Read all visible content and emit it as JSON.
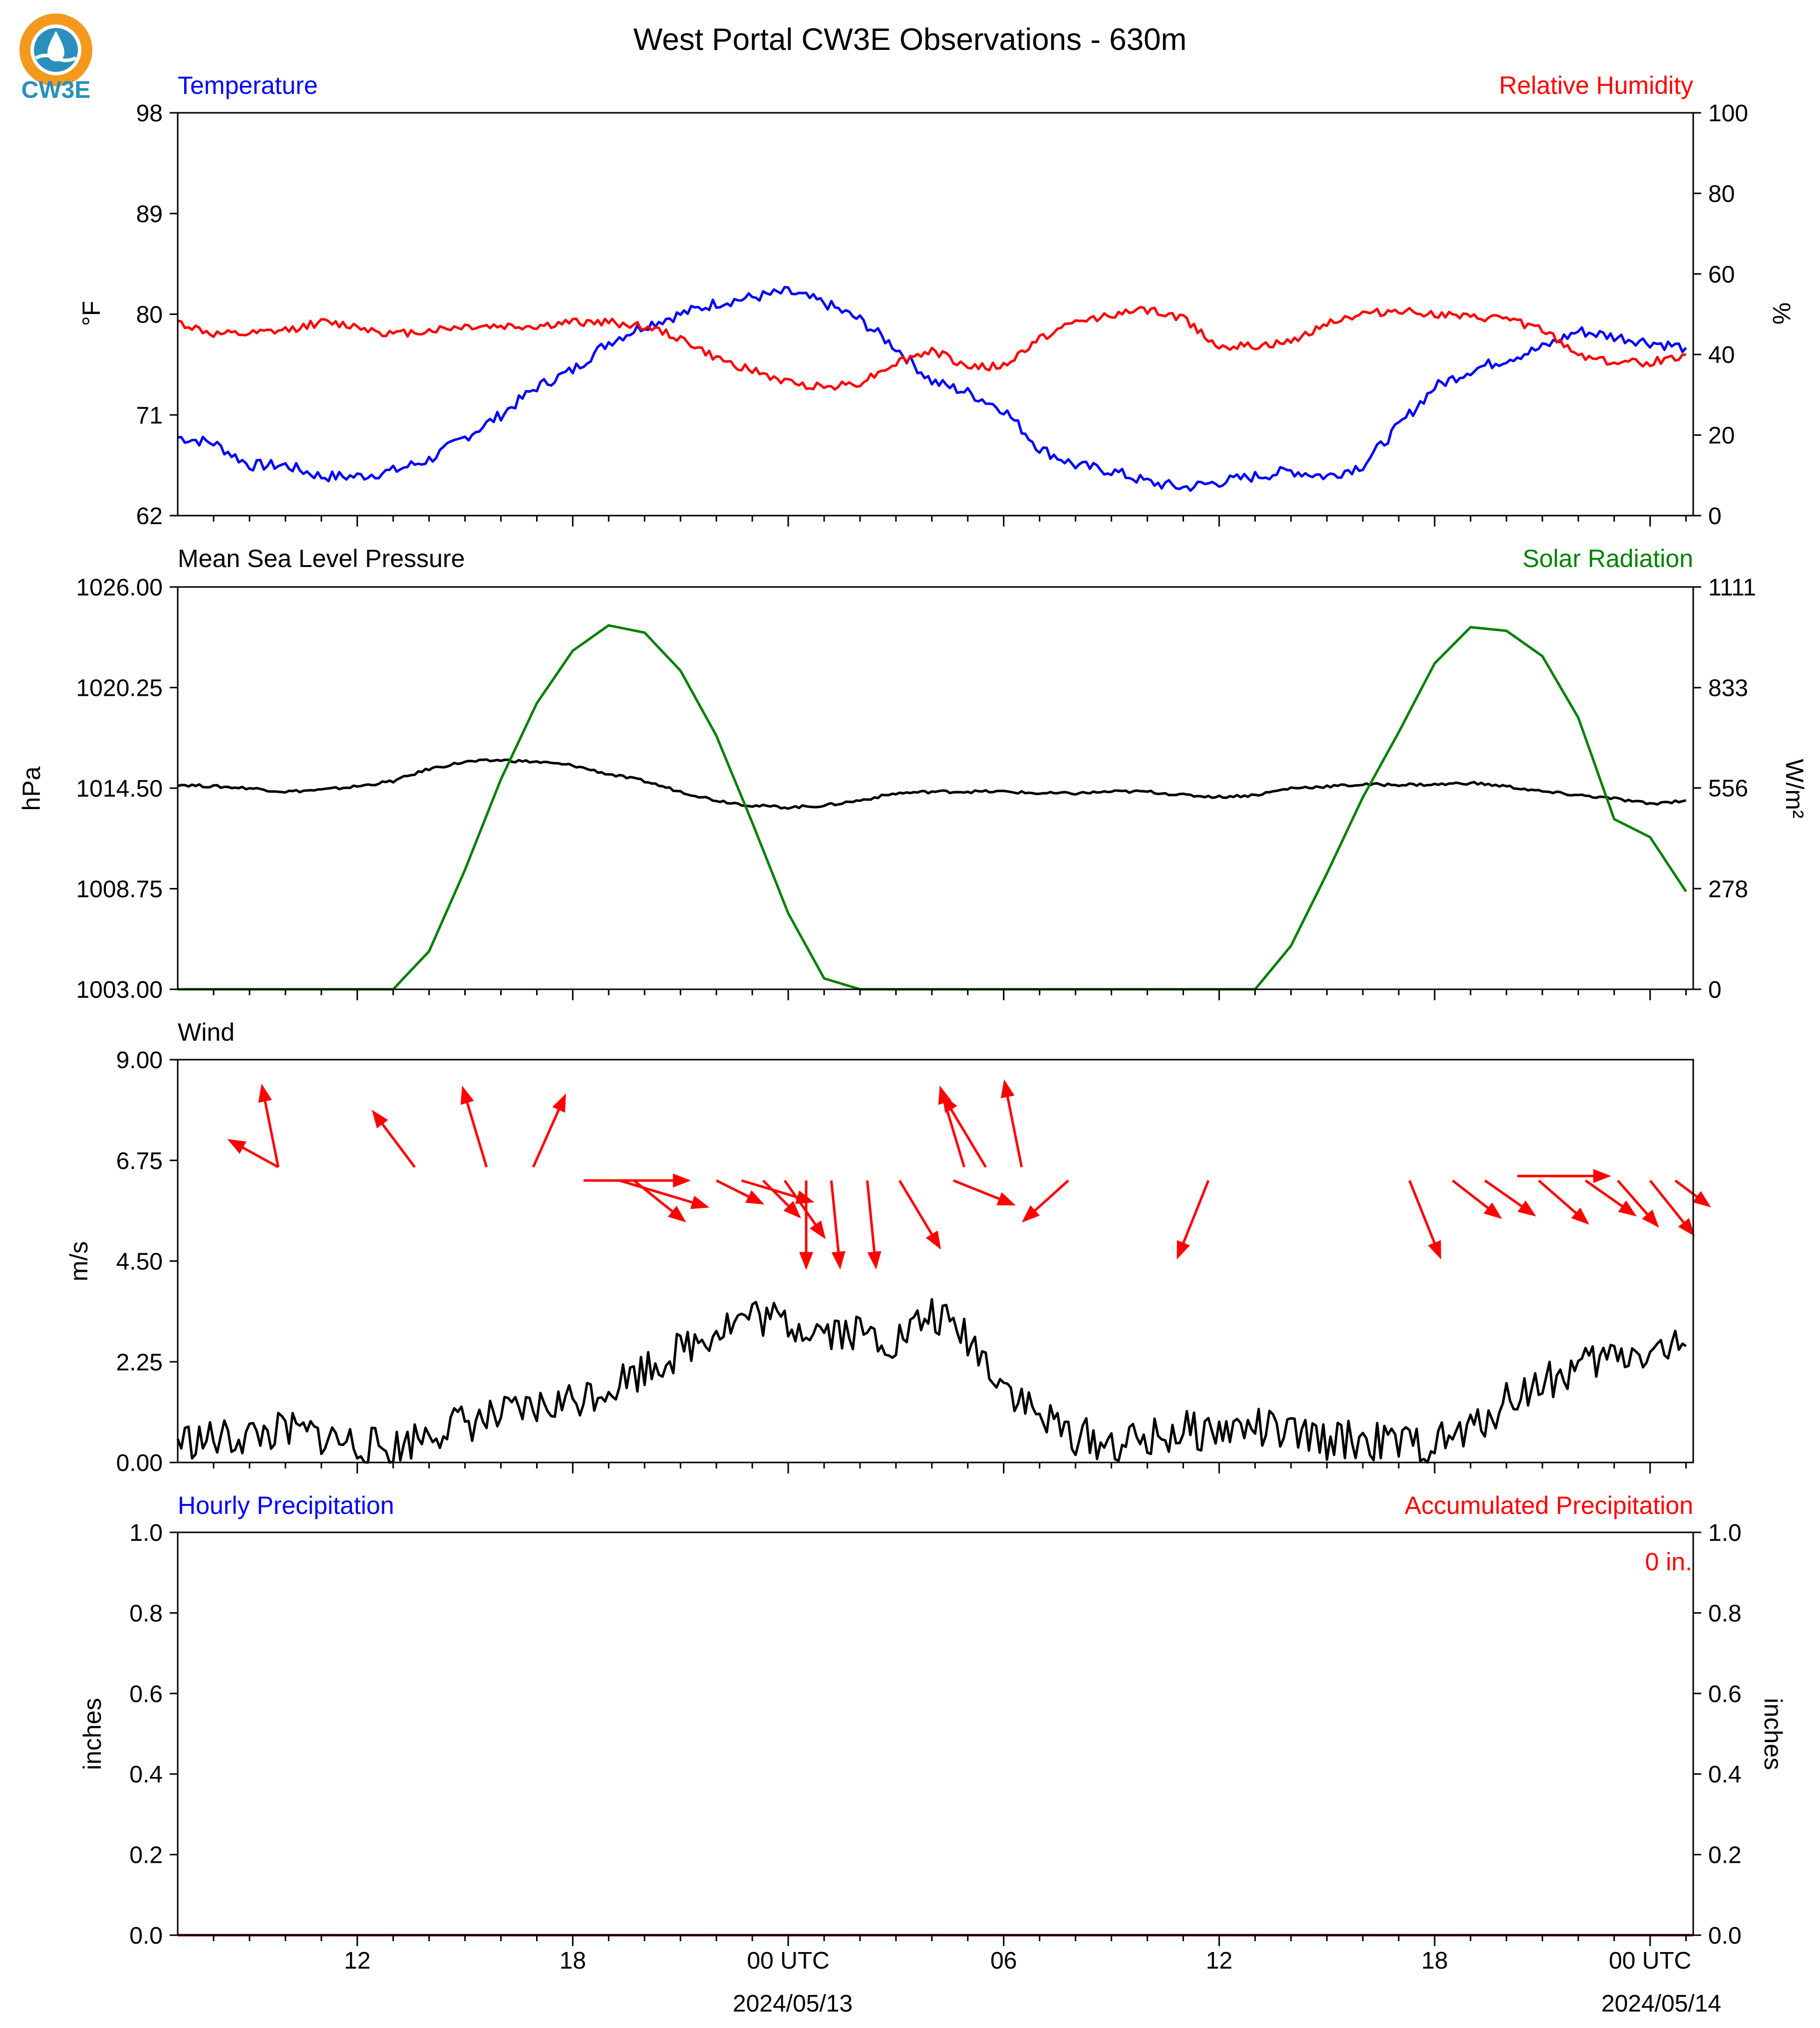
{
  "title": "West Portal CW3E Observations - 630m",
  "logo": {
    "text": "CW3E",
    "colors": [
      "#f39a1e",
      "#2a8fbd"
    ]
  },
  "colors": {
    "blue": "#0000ff",
    "red": "#ff0000",
    "green": "#008000",
    "black": "#000000",
    "accum": "#8b0000"
  },
  "time_axis": {
    "start": "2024-05-12T07:00Z",
    "end": "2024-05-14T01:00Z",
    "tick_hours": [
      "12",
      "18",
      "00 UTC",
      "06",
      "12",
      "18",
      "00 UTC"
    ],
    "date_labels": [
      "2024/05/13",
      "2024/05/14"
    ]
  },
  "chart_data": [
    {
      "type": "line",
      "panel": "temperature-humidity",
      "left_label": "Temperature",
      "right_label": "Relative Humidity",
      "ylabel": "°F",
      "y2label": "%",
      "ylim": [
        62,
        98
      ],
      "y2lim": [
        0,
        100
      ],
      "yticks": [
        "62",
        "71",
        "80",
        "89",
        "98"
      ],
      "y2ticks": [
        "0",
        "20",
        "40",
        "60",
        "80",
        "100"
      ],
      "x_hours": [
        0,
        1,
        2,
        3,
        4,
        5,
        6,
        7,
        8,
        9,
        10,
        11,
        12,
        13,
        14,
        15,
        16,
        17,
        18,
        19,
        20,
        21,
        22,
        23,
        24,
        25,
        26,
        27,
        28,
        29,
        30,
        31,
        32,
        33,
        34,
        35,
        36,
        37,
        38,
        39,
        40,
        41,
        42
      ],
      "series": [
        {
          "name": "Temperature",
          "color": "#0000ff",
          "axis": "left",
          "values": [
            69,
            68.5,
            66.5,
            66.5,
            65.5,
            65.5,
            66,
            67,
            69,
            71,
            73.5,
            75,
            77.5,
            79,
            80,
            81,
            81.5,
            82,
            81,
            79.5,
            77,
            74,
            73,
            71.5,
            68,
            66.5,
            66,
            65,
            64.5,
            65,
            65.5,
            66,
            65.5,
            66.5,
            70,
            73.5,
            75,
            76,
            77,
            78.5,
            78,
            77.5,
            77
          ]
        },
        {
          "name": "Relative Humidity",
          "color": "#ff0000",
          "axis": "right",
          "values": [
            48,
            45,
            45,
            46,
            48,
            47,
            45,
            46,
            47,
            47,
            47,
            48,
            48,
            47,
            44,
            39,
            36,
            33,
            32,
            33,
            38,
            41,
            37,
            37,
            44,
            48,
            50,
            51,
            49,
            42,
            42,
            43,
            48,
            50,
            51,
            50,
            49,
            49,
            46,
            40,
            38,
            38,
            40
          ]
        }
      ]
    },
    {
      "type": "line",
      "panel": "pressure-solar",
      "left_label": "Mean Sea Level Pressure",
      "right_label": "Solar Radiation",
      "ylabel": "hPa",
      "y2label": "W/m²",
      "ylim": [
        1003.0,
        1026.0
      ],
      "y2lim": [
        0,
        1111
      ],
      "yticks": [
        "1003.00",
        "1008.75",
        "1014.50",
        "1020.25",
        "1026.00"
      ],
      "y2ticks": [
        "0",
        "278",
        "556",
        "833",
        "1111"
      ],
      "x_hours": [
        0,
        1,
        2,
        3,
        4,
        5,
        6,
        7,
        8,
        9,
        10,
        11,
        12,
        13,
        14,
        15,
        16,
        17,
        18,
        19,
        20,
        21,
        22,
        23,
        24,
        25,
        26,
        27,
        28,
        29,
        30,
        31,
        32,
        33,
        34,
        35,
        36,
        37,
        38,
        39,
        40,
        41,
        42
      ],
      "series": [
        {
          "name": "Mean Sea Level Pressure",
          "color": "#000000",
          "axis": "left",
          "values": [
            1014.7,
            1014.6,
            1014.5,
            1014.3,
            1014.4,
            1014.6,
            1014.9,
            1015.6,
            1016.0,
            1016.1,
            1016.0,
            1015.8,
            1015.3,
            1014.9,
            1014.3,
            1013.8,
            1013.5,
            1013.4,
            1013.5,
            1013.8,
            1014.2,
            1014.3,
            1014.3,
            1014.3,
            1014.2,
            1014.2,
            1014.3,
            1014.3,
            1014.1,
            1014.0,
            1014.1,
            1014.5,
            1014.6,
            1014.7,
            1014.7,
            1014.7,
            1014.8,
            1014.6,
            1014.3,
            1014.1,
            1013.9,
            1013.6,
            1013.8
          ]
        },
        {
          "name": "Solar Radiation",
          "color": "#008000",
          "axis": "right",
          "values": [
            0,
            0,
            0,
            0,
            0,
            0,
            0,
            105,
            330,
            580,
            790,
            935,
            1005,
            985,
            880,
            700,
            460,
            210,
            30,
            0,
            0,
            0,
            0,
            0,
            0,
            0,
            0,
            0,
            0,
            0,
            0,
            120,
            320,
            530,
            710,
            900,
            1000,
            990,
            920,
            750,
            470,
            420,
            270
          ]
        }
      ]
    },
    {
      "type": "line",
      "panel": "wind",
      "left_label": "Wind",
      "ylabel": "m/s",
      "ylim": [
        0.0,
        9.0
      ],
      "yticks": [
        "0.00",
        "2.25",
        "4.50",
        "6.75",
        "9.00"
      ],
      "x_hours": [
        0,
        1,
        2,
        3,
        4,
        5,
        6,
        7,
        8,
        9,
        10,
        11,
        12,
        13,
        14,
        15,
        16,
        17,
        18,
        19,
        20,
        21,
        22,
        23,
        24,
        25,
        26,
        27,
        28,
        29,
        30,
        31,
        32,
        33,
        34,
        35,
        36,
        37,
        38,
        39,
        40,
        41,
        42
      ],
      "series": [
        {
          "name": "Wind speed",
          "color": "#000000",
          "axis": "left",
          "values": [
            0.5,
            0.5,
            0.6,
            0.7,
            0.6,
            0.4,
            0.3,
            0.7,
            0.9,
            1.0,
            1.2,
            1.4,
            1.7,
            2.1,
            2.5,
            3.0,
            3.3,
            3.1,
            3.0,
            2.9,
            2.7,
            3.3,
            2.8,
            1.8,
            1.0,
            0.6,
            0.4,
            0.5,
            0.7,
            0.7,
            0.8,
            0.6,
            0.5,
            0.5,
            0.4,
            0.4,
            0.7,
            1.4,
            1.8,
            2.1,
            2.4,
            2.5,
            2.6
          ]
        }
      ],
      "barbs": [
        {
          "x": 2.8,
          "y": 6.6,
          "dir": [
            -1,
            0.55
          ],
          "len": 1.3
        },
        {
          "x": 2.8,
          "y": 6.6,
          "dir": [
            -0.2,
            1
          ],
          "len": 1.9
        },
        {
          "x": 6.6,
          "y": 6.6,
          "dir": [
            -0.6,
            0.8
          ],
          "len": 1.6
        },
        {
          "x": 8.6,
          "y": 6.6,
          "dir": [
            -0.3,
            1
          ],
          "len": 1.9
        },
        {
          "x": 9.9,
          "y": 6.6,
          "dir": [
            0.4,
            0.9
          ],
          "len": 1.8
        },
        {
          "x": 11.3,
          "y": 6.3,
          "dir": [
            1,
            0
          ],
          "len": 2.4
        },
        {
          "x": 12.3,
          "y": 6.3,
          "dir": [
            1,
            -0.3
          ],
          "len": 2.1
        },
        {
          "x": 12.7,
          "y": 6.3,
          "dir": [
            1,
            -0.8
          ],
          "len": 1.5
        },
        {
          "x": 15.0,
          "y": 6.3,
          "dir": [
            1,
            -0.5
          ],
          "len": 1.2
        },
        {
          "x": 15.7,
          "y": 6.3,
          "dir": [
            1,
            -0.3
          ],
          "len": 1.7
        },
        {
          "x": 16.3,
          "y": 6.3,
          "dir": [
            0.9,
            -0.9
          ],
          "len": 1.2
        },
        {
          "x": 16.9,
          "y": 6.3,
          "dir": [
            0.7,
            -1
          ],
          "len": 1.6
        },
        {
          "x": 17.5,
          "y": 6.3,
          "dir": [
            0,
            -1
          ],
          "len": 2.0
        },
        {
          "x": 18.2,
          "y": 6.3,
          "dir": [
            0.1,
            -1
          ],
          "len": 2.0
        },
        {
          "x": 19.2,
          "y": 6.3,
          "dir": [
            0.1,
            -1
          ],
          "len": 2.0
        },
        {
          "x": 20.1,
          "y": 6.3,
          "dir": [
            0.6,
            -1
          ],
          "len": 1.8
        },
        {
          "x": 21.9,
          "y": 6.6,
          "dir": [
            -0.3,
            1
          ],
          "len": 1.9
        },
        {
          "x": 22.5,
          "y": 6.6,
          "dir": [
            -0.6,
            1
          ],
          "len": 1.9
        },
        {
          "x": 21.6,
          "y": 6.3,
          "dir": [
            1,
            -0.4
          ],
          "len": 1.5
        },
        {
          "x": 23.5,
          "y": 6.6,
          "dir": [
            -0.2,
            1
          ],
          "len": 2.0
        },
        {
          "x": 24.8,
          "y": 6.3,
          "dir": [
            -1,
            -0.9
          ],
          "len": 1.4
        },
        {
          "x": 28.7,
          "y": 6.3,
          "dir": [
            -0.4,
            -1
          ],
          "len": 1.9
        },
        {
          "x": 34.3,
          "y": 6.3,
          "dir": [
            0.4,
            -1
          ],
          "len": 1.9
        },
        {
          "x": 35.5,
          "y": 6.3,
          "dir": [
            0.9,
            -0.7
          ],
          "len": 1.4
        },
        {
          "x": 36.4,
          "y": 6.3,
          "dir": [
            1,
            -0.7
          ],
          "len": 1.4
        },
        {
          "x": 37.3,
          "y": 6.4,
          "dir": [
            1,
            0
          ],
          "len": 2.1
        },
        {
          "x": 37.9,
          "y": 6.3,
          "dir": [
            0.8,
            -0.7
          ],
          "len": 1.5
        },
        {
          "x": 39.2,
          "y": 6.3,
          "dir": [
            1,
            -0.7
          ],
          "len": 1.4
        },
        {
          "x": 40.1,
          "y": 6.3,
          "dir": [
            0.7,
            -0.8
          ],
          "len": 1.4
        },
        {
          "x": 41.0,
          "y": 6.3,
          "dir": [
            0.8,
            -1
          ],
          "len": 1.6
        },
        {
          "x": 41.7,
          "y": 6.3,
          "dir": [
            0.8,
            -0.6
          ],
          "len": 1.0
        }
      ]
    },
    {
      "type": "line",
      "panel": "precipitation",
      "left_label": "Hourly Precipitation",
      "right_label": "Accumulated Precipitation",
      "ylabel": "inches",
      "y2label": "inches",
      "ylim": [
        0.0,
        1.0
      ],
      "y2lim": [
        0.0,
        1.0
      ],
      "yticks": [
        "0.0",
        "0.2",
        "0.4",
        "0.6",
        "0.8",
        "1.0"
      ],
      "y2ticks": [
        "0.0",
        "0.2",
        "0.4",
        "0.6",
        "0.8",
        "1.0"
      ],
      "accumulated_text": "0 in.",
      "series": [
        {
          "name": "Accumulated Precipitation",
          "color": "#8b0000",
          "axis": "right",
          "values": [
            0,
            0
          ]
        }
      ]
    }
  ]
}
